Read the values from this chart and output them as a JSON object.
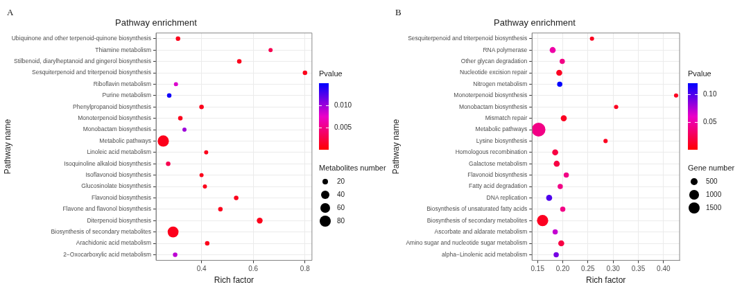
{
  "chart_data": [
    {
      "type": "bubble",
      "orientation": "horizontal",
      "title": "Pathway enrichment",
      "xlabel": "Rich factor",
      "ylabel": "Pathway name",
      "annotations": [
        "A"
      ],
      "categories": [
        "Ubiquinone and other terpenoid-quinone biosynthesis",
        "Thiamine metabolism",
        "Stilbenoid, diarylheptanoid and gingerol biosynthesis",
        "Sesquiterpenoid and triterpenoid biosynthesis",
        "Riboflavin metabolism",
        "Purine metabolism",
        "Phenylpropanoid biosynthesis",
        "Monoterpenoid biosynthesis",
        "Monobactam biosynthesis",
        "Metabolic pathways",
        "Linoleic acid metabolism",
        "Isoquinoline alkaloid biosynthesis",
        "Isoflavonoid biosynthesis",
        "Glucosinolate biosynthesis",
        "Flavonoid biosynthesis",
        "Flavone and flavonol biosynthesis",
        "Diterpenoid biosynthesis",
        "Biosynthesis of secondary metabolites",
        "Arachidonic acid metabolism",
        "2−Oxocarboxylic acid metabolism"
      ],
      "values": [
        0.309,
        0.667,
        0.546,
        0.8,
        0.301,
        0.275,
        0.4,
        0.318,
        0.334,
        0.252,
        0.418,
        0.271,
        0.4,
        0.413,
        0.534,
        0.473,
        0.625,
        0.29,
        0.422,
        0.298
      ],
      "sizes": [
        12,
        10,
        12,
        12,
        10,
        12,
        12,
        12,
        10,
        75,
        10,
        12,
        10,
        10,
        12,
        12,
        20,
        70,
        12,
        12
      ],
      "cvalues": [
        0.001,
        0.003,
        0.001,
        0.001,
        0.008,
        0.0145,
        0.001,
        0.001,
        0.01,
        0.001,
        0.001,
        0.003,
        0.001,
        0.001,
        0.001,
        0.001,
        0.001,
        0.001,
        0.001,
        0.009
      ],
      "xlim": [
        0.224,
        0.827
      ],
      "xticks": [
        0.4,
        0.6,
        0.8
      ],
      "clabel": "Pvalue",
      "clim": [
        0,
        0.015
      ],
      "cticks": [
        0.005,
        {
          "value": 0.01,
          "label": "0.010"
        }
      ],
      "legend_title": "Metabolites number",
      "size_legend": [
        20,
        40,
        60,
        80
      ],
      "grid": true
    },
    {
      "type": "bubble",
      "orientation": "horizontal",
      "title": "Pathway enrichment",
      "xlabel": "Rich factor",
      "ylabel": "Pathway name",
      "annotations": [
        "B"
      ],
      "categories": [
        "Sesquiterpenoid and triterpenoid biosynthesis",
        "RNA polymerase",
        "Other glycan degradation",
        "Nucleotide excision repair",
        "Nitrogen metabolism",
        "Monoterpenoid biosynthesis",
        "Monobactam biosynthesis",
        "Mismatch repair",
        "Metabolic pathways",
        "Lysine biosynthesis",
        "Homologous recombination",
        "Galactose metabolism",
        "Flavonoid biosynthesis",
        "Fatty acid degradation",
        "DNA replication",
        "Biosynthesis of unsaturated fatty acids",
        "Biosynthesis of secondary metabolites",
        "Ascorbate and aldarate metabolism",
        "Amino sugar and nucleotide sugar metabolism",
        "alpha−Linolenic acid metabolism"
      ],
      "values": [
        0.258,
        0.18,
        0.199,
        0.193,
        0.194,
        0.425,
        0.306,
        0.202,
        0.152,
        0.285,
        0.185,
        0.188,
        0.207,
        0.195,
        0.173,
        0.2,
        0.16,
        0.185,
        0.197,
        0.187
      ],
      "sizes": [
        200,
        400,
        300,
        400,
        300,
        200,
        200,
        400,
        2100,
        200,
        400,
        400,
        300,
        300,
        400,
        300,
        1400,
        300,
        400,
        300
      ],
      "cvalues": [
        0.01,
        0.05,
        0.04,
        0.01,
        0.12,
        0.01,
        0.01,
        0.01,
        0.04,
        0.01,
        0.02,
        0.02,
        0.04,
        0.04,
        0.1,
        0.04,
        0.01,
        0.07,
        0.02,
        0.09
      ],
      "xlim": [
        0.139,
        0.432
      ],
      "xticks": [
        {
          "value": 0.15,
          "label": "0.15"
        },
        {
          "value": 0.2,
          "label": "0.20"
        },
        {
          "value": 0.25,
          "label": "0.25"
        },
        {
          "value": 0.3,
          "label": "0.30"
        },
        {
          "value": 0.35,
          "label": "0.35"
        },
        {
          "value": 0.4,
          "label": "0.40"
        }
      ],
      "clabel": "Pvalue",
      "clim": [
        0,
        0.12
      ],
      "cticks": [
        {
          "value": 0.05,
          "label": "0.05"
        },
        {
          "value": 0.1,
          "label": "0.10"
        }
      ],
      "legend_title": "Gene number",
      "size_legend": [
        500,
        1000,
        1500
      ],
      "grid": true
    }
  ]
}
